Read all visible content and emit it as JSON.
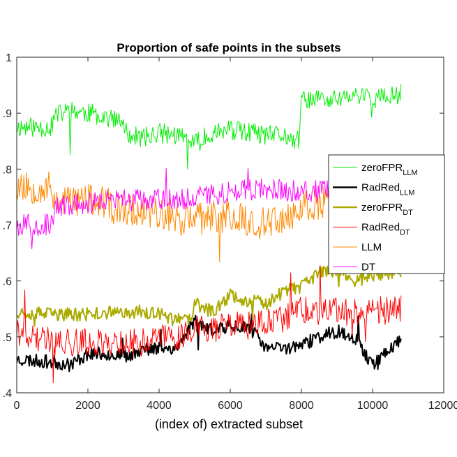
{
  "chart_data": {
    "type": "line",
    "title": "Proportion of safe points in the subsets",
    "xlabel": "(index of) extracted subset",
    "ylabel": "",
    "xlim": [
      0,
      12000
    ],
    "ylim": [
      0.4,
      1.0
    ],
    "x_ticks": [
      0,
      2000,
      4000,
      6000,
      8000,
      10000,
      12000
    ],
    "x_tick_labels": [
      "0",
      "2000",
      "4000",
      "6000",
      "8000",
      "10000",
      "12000"
    ],
    "y_ticks": [
      0.4,
      0.5,
      0.6,
      0.7,
      0.8,
      0.9,
      1.0
    ],
    "y_tick_labels": [
      ".4",
      ".5",
      ".6",
      ".7",
      ".8",
      ".9",
      "1"
    ],
    "grid": false,
    "legend_position": "right",
    "legend": [
      {
        "base": "zeroFPR",
        "sub": "LLM",
        "color": "#00ee00",
        "width": 1
      },
      {
        "base": "RadRed",
        "sub": "LLM",
        "color": "#000000",
        "width": 2.5
      },
      {
        "base": "zeroFPR",
        "sub": "DT",
        "color": "#aaaa00",
        "width": 2.5
      },
      {
        "base": "RadRed",
        "sub": "DT",
        "color": "#ff0000",
        "width": 1
      },
      {
        "base": "LLM",
        "sub": "",
        "color": "#ff8800",
        "width": 1
      },
      {
        "base": "DT",
        "sub": "",
        "color": "#ff00ff",
        "width": 1
      }
    ],
    "series": [
      {
        "name": "zeroFPR_LLM",
        "color": "#00ee00",
        "width": 1,
        "noise": 0.018,
        "seed": 11,
        "x": [
          0,
          1000,
          1050,
          1500,
          2000,
          2500,
          3000,
          3050,
          3500,
          4000,
          4500,
          5000,
          5500,
          6000,
          6500,
          7000,
          7500,
          7950,
          8000,
          8500,
          9000,
          9500,
          9900,
          10000,
          10500,
          10800
        ],
        "values": [
          0.875,
          0.875,
          0.895,
          0.905,
          0.9,
          0.895,
          0.88,
          0.865,
          0.855,
          0.865,
          0.86,
          0.845,
          0.865,
          0.87,
          0.865,
          0.86,
          0.86,
          0.85,
          0.925,
          0.925,
          0.925,
          0.93,
          0.93,
          0.925,
          0.93,
          0.935
        ]
      },
      {
        "name": "RadRed_LLM",
        "color": "#000000",
        "width": 2,
        "noise": 0.012,
        "seed": 23,
        "x": [
          0,
          1000,
          1500,
          2000,
          2500,
          3000,
          3500,
          4000,
          4500,
          5000,
          5500,
          6000,
          6500,
          7000,
          7500,
          8000,
          8500,
          9000,
          9500,
          10000,
          10500,
          10800
        ],
        "values": [
          0.46,
          0.455,
          0.45,
          0.47,
          0.47,
          0.465,
          0.475,
          0.48,
          0.48,
          0.53,
          0.51,
          0.52,
          0.52,
          0.48,
          0.48,
          0.485,
          0.5,
          0.51,
          0.5,
          0.45,
          0.48,
          0.495
        ]
      },
      {
        "name": "zeroFPR_DT",
        "color": "#aaaa00",
        "width": 2,
        "noise": 0.012,
        "seed": 37,
        "x": [
          0,
          1000,
          2000,
          3000,
          3500,
          4000,
          4500,
          4900,
          5000,
          5500,
          6000,
          6500,
          7000,
          7500,
          8000,
          8500,
          9000,
          9500,
          10000,
          10500,
          10800
        ],
        "values": [
          0.545,
          0.54,
          0.54,
          0.545,
          0.545,
          0.54,
          0.53,
          0.53,
          0.56,
          0.545,
          0.575,
          0.565,
          0.56,
          0.58,
          0.59,
          0.615,
          0.62,
          0.6,
          0.61,
          0.615,
          0.61
        ]
      },
      {
        "name": "RadRed_DT",
        "color": "#ff0000",
        "width": 1,
        "noise": 0.025,
        "seed": 41,
        "x": [
          0,
          1000,
          2000,
          3000,
          3500,
          4000,
          4500,
          5000,
          5500,
          6000,
          6500,
          7000,
          7500,
          8000,
          8500,
          9000,
          9500,
          10000,
          10500,
          10800
        ],
        "values": [
          0.51,
          0.49,
          0.49,
          0.49,
          0.49,
          0.5,
          0.5,
          0.515,
          0.515,
          0.52,
          0.52,
          0.525,
          0.53,
          0.55,
          0.54,
          0.545,
          0.545,
          0.55,
          0.545,
          0.55
        ]
      },
      {
        "name": "LLM",
        "color": "#ff8800",
        "width": 1,
        "noise": 0.03,
        "seed": 53,
        "x": [
          0,
          1000,
          1050,
          2000,
          3000,
          4000,
          4500,
          5000,
          6000,
          6500,
          7000,
          7500,
          8000,
          8500,
          9000,
          9500,
          10000,
          10500,
          10800
        ],
        "values": [
          0.77,
          0.765,
          0.745,
          0.745,
          0.73,
          0.72,
          0.71,
          0.71,
          0.715,
          0.71,
          0.7,
          0.71,
          0.73,
          0.74,
          0.75,
          0.76,
          0.775,
          0.79,
          0.78
        ]
      },
      {
        "name": "DT",
        "color": "#ff00ff",
        "width": 1,
        "noise": 0.02,
        "seed": 67,
        "x": [
          0,
          1000,
          1050,
          2000,
          3000,
          4000,
          5000,
          6000,
          7000,
          8000,
          9000,
          10000,
          10800
        ],
        "values": [
          0.7,
          0.7,
          0.73,
          0.74,
          0.745,
          0.745,
          0.75,
          0.76,
          0.765,
          0.76,
          0.76,
          0.76,
          0.765
        ]
      }
    ]
  }
}
